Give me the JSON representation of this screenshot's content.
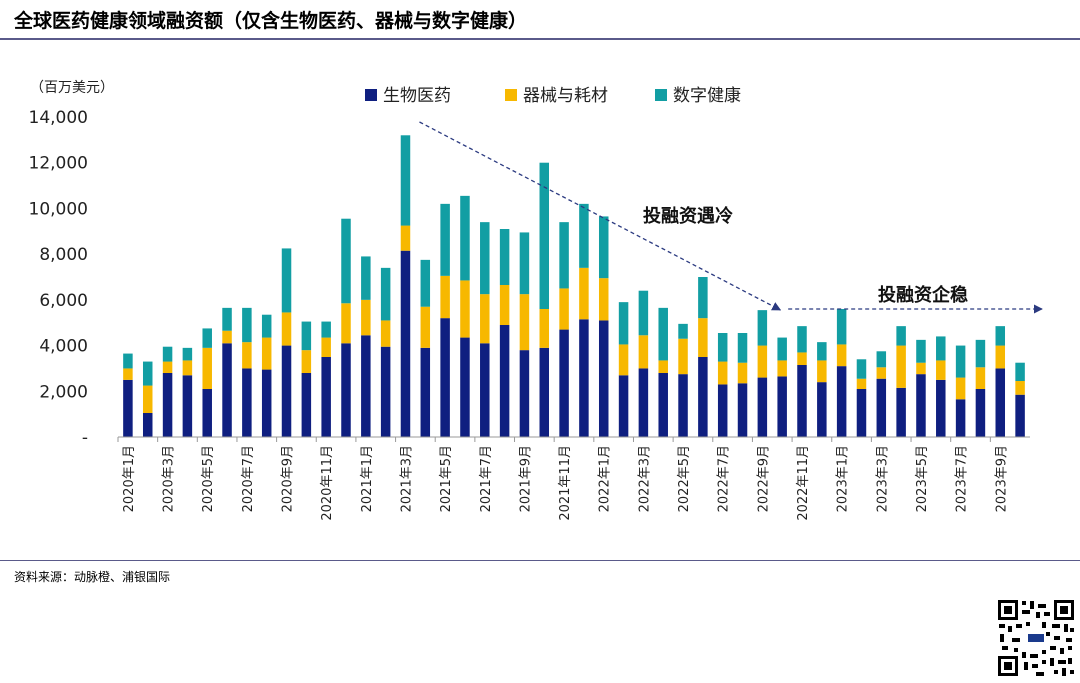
{
  "page": {
    "title": "全球医药健康领域融资额（仅含生物医药、器械与数字健康）",
    "source": "资料来源：动脉橙、浦银国际"
  },
  "colors": {
    "bio": "#0f1f80",
    "device": "#f7b800",
    "digital": "#129ea3",
    "axis": "#999999",
    "arrow": "#2b3a80"
  },
  "chart_data": {
    "type": "bar",
    "stacked": true,
    "unit_label": "（百万美元）",
    "ylim": [
      0,
      14000
    ],
    "yticks": [
      {
        "value": 0,
        "label": "-"
      },
      {
        "value": 2000,
        "label": "2,000"
      },
      {
        "value": 4000,
        "label": "4,000"
      },
      {
        "value": 6000,
        "label": "6,000"
      },
      {
        "value": 8000,
        "label": "8,000"
      },
      {
        "value": 10000,
        "label": "10,000"
      },
      {
        "value": 12000,
        "label": "12,000"
      },
      {
        "value": 14000,
        "label": "14,000"
      }
    ],
    "categories": [
      "2020年1月",
      "2020年2月",
      "2020年3月",
      "2020年4月",
      "2020年5月",
      "2020年6月",
      "2020年7月",
      "2020年8月",
      "2020年9月",
      "2020年10月",
      "2020年11月",
      "2020年12月",
      "2021年1月",
      "2021年2月",
      "2021年3月",
      "2021年4月",
      "2021年5月",
      "2021年6月",
      "2021年7月",
      "2021年8月",
      "2021年9月",
      "2021年10月",
      "2021年11月",
      "2021年12月",
      "2022年1月",
      "2022年2月",
      "2022年3月",
      "2022年4月",
      "2022年5月",
      "2022年6月",
      "2022年7月",
      "2022年8月",
      "2022年9月",
      "2022年10月",
      "2022年11月",
      "2022年12月",
      "2023年1月",
      "2023年2月",
      "2023年3月",
      "2023年4月",
      "2023年5月",
      "2023年6月",
      "2023年7月",
      "2023年8月",
      "2023年9月",
      "2023年10月"
    ],
    "xtick_labels": [
      "2020年1月",
      "2020年3月",
      "2020年5月",
      "2020年7月",
      "2020年9月",
      "2020年11月",
      "2021年1月",
      "2021年3月",
      "2021年5月",
      "2021年7月",
      "2021年9月",
      "2021年11月",
      "2022年1月",
      "2022年3月",
      "2022年5月",
      "2022年7月",
      "2022年9月",
      "2022年11月",
      "2023年1月",
      "2023年3月",
      "2023年5月",
      "2023年7月",
      "2023年9月"
    ],
    "series": [
      {
        "name": "生物医药",
        "color_key": "bio",
        "values": [
          2500,
          1050,
          2800,
          2700,
          2100,
          4100,
          3000,
          2950,
          4000,
          2800,
          3500,
          4100,
          4450,
          3950,
          8150,
          3900,
          5200,
          4350,
          4100,
          4900,
          3800,
          3900,
          4700,
          5150,
          5100,
          2700,
          3000,
          2800,
          2750,
          3500,
          2300,
          2350,
          2600,
          2650,
          3150,
          2400,
          3100,
          2100,
          2550,
          2150,
          2750,
          2500,
          1650,
          2100,
          3000,
          1850
        ]
      },
      {
        "name": "器械与耗材",
        "color_key": "device",
        "values": [
          500,
          1200,
          500,
          650,
          1800,
          550,
          1150,
          1400,
          1450,
          1000,
          850,
          1750,
          1550,
          1150,
          1100,
          1800,
          1850,
          2500,
          2150,
          1750,
          2450,
          1700,
          1800,
          2250,
          1850,
          1350,
          1450,
          550,
          1550,
          1700,
          1000,
          900,
          1400,
          700,
          550,
          950,
          950,
          450,
          500,
          1850,
          500,
          850,
          950,
          950,
          1000,
          600
        ]
      },
      {
        "name": "数字健康",
        "color_key": "digital",
        "values": [
          650,
          1050,
          650,
          550,
          850,
          1000,
          1500,
          1000,
          2800,
          1250,
          700,
          3700,
          1900,
          2300,
          3950,
          2050,
          3150,
          3700,
          3150,
          2450,
          2700,
          6400,
          2900,
          2800,
          2700,
          1850,
          1950,
          2300,
          650,
          1800,
          1250,
          1300,
          1550,
          1000,
          1150,
          800,
          1550,
          850,
          700,
          850,
          1000,
          1050,
          1400,
          1200,
          850,
          800
        ]
      }
    ],
    "annotations": [
      {
        "text": "投融资遇冷",
        "arrow_from_month": "2021年3月",
        "arrow_to_month": "2022年9月"
      },
      {
        "text": "投融资企稳",
        "arrow_from_month": "2022年10月",
        "arrow_to_month": "2023年10月"
      }
    ]
  }
}
